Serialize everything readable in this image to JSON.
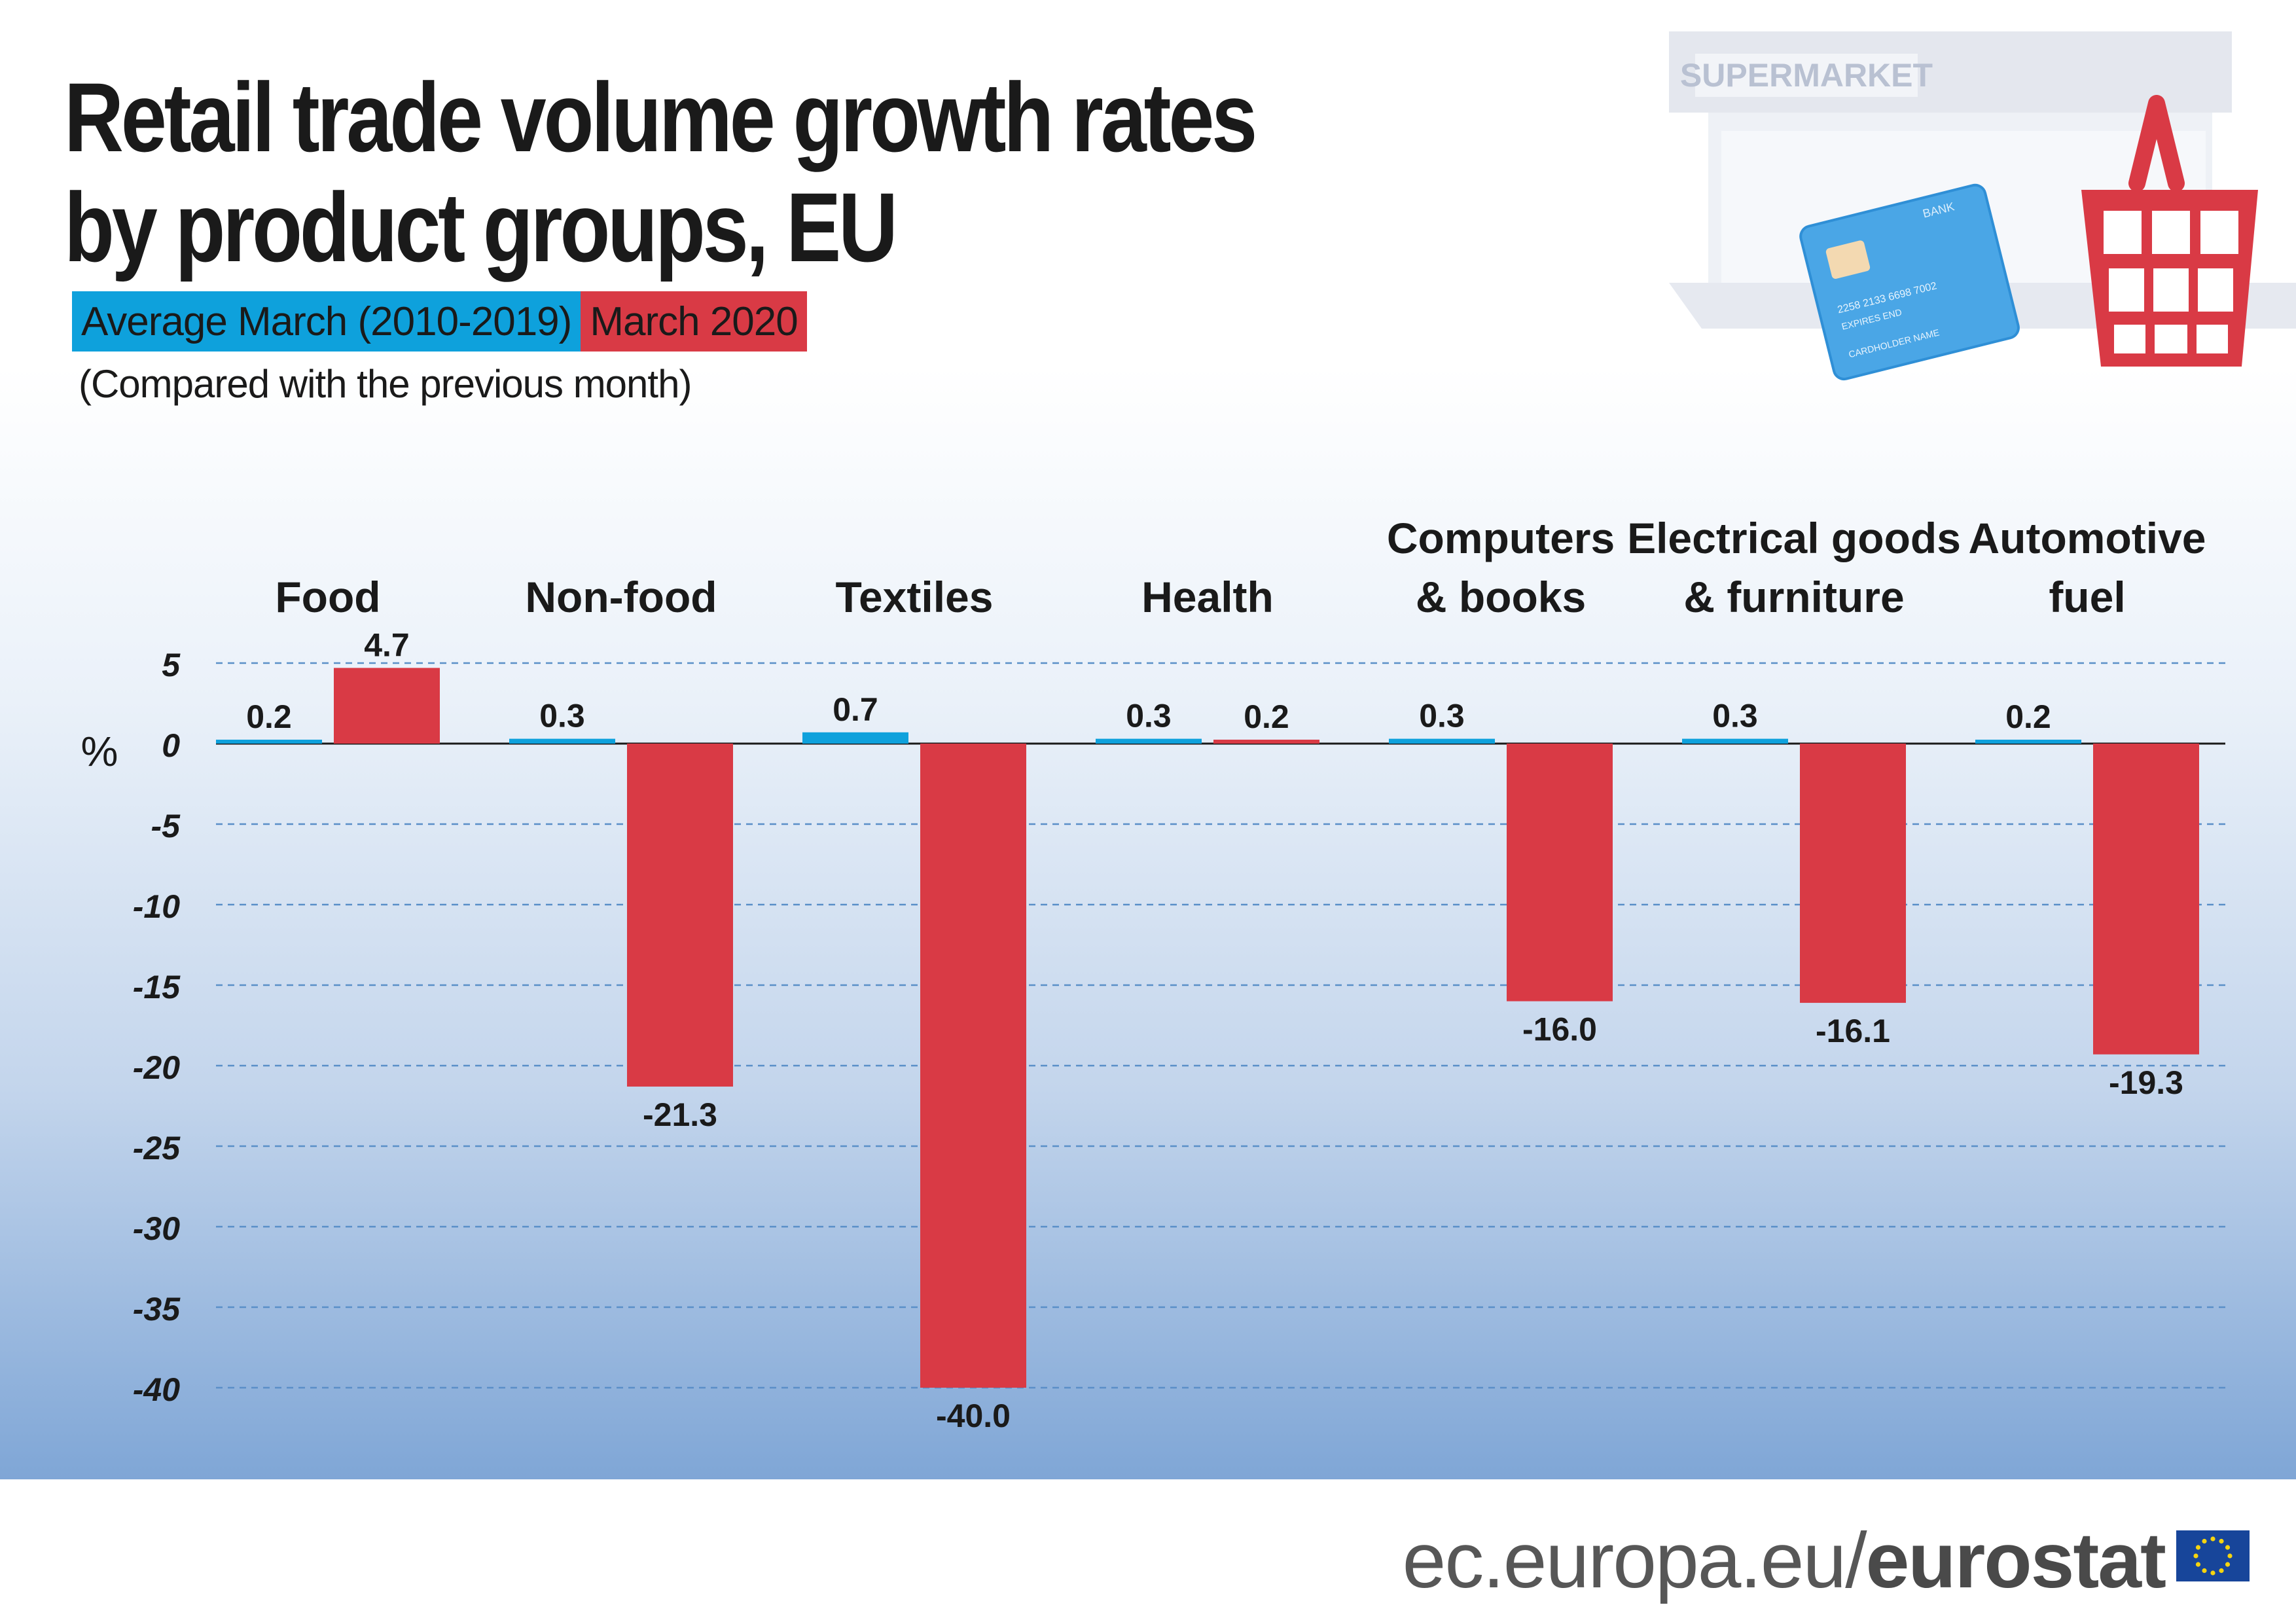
{
  "title_line1": "Retail trade volume growth rates",
  "title_line2": "by product groups, EU",
  "subtitle": "(Compared with the previous month)",
  "footer": {
    "url_prefix": "ec.europa.eu/",
    "brand": "eurostat"
  },
  "illustration": {
    "store_sign": "SUPERMARKET",
    "card_bank": "BANK",
    "card_number": "2258 2133 6698 7002",
    "card_expires": "EXPIRES END",
    "card_holder": "CARDHOLDER NAME",
    "icons": [
      "supermarket-icon",
      "credit-card-icon",
      "shopping-basket-icon",
      "eu-flag-icon"
    ]
  },
  "colors": {
    "avg": "#0ea1dc",
    "cur": "#d93a45",
    "grid": "#5a8fc8",
    "text": "#1a1a1a"
  },
  "chart_data": {
    "type": "bar",
    "ylabel": "%",
    "ylim": [
      -40,
      5
    ],
    "yticks": [
      5,
      0,
      -5,
      -10,
      -15,
      -20,
      -25,
      -30,
      -35,
      -40
    ],
    "grid": true,
    "legend_position": "top-left",
    "categories": [
      [
        "Food"
      ],
      [
        "Non-food"
      ],
      [
        "Textiles"
      ],
      [
        "Health"
      ],
      [
        "Computers",
        "& books"
      ],
      [
        "Electrical goods",
        "& furniture"
      ],
      [
        "Automotive",
        "fuel"
      ]
    ],
    "series": [
      {
        "name": "Average March (2010-2019)",
        "values": [
          0.2,
          0.3,
          0.7,
          0.3,
          0.3,
          0.3,
          0.2
        ]
      },
      {
        "name": "March 2020",
        "values": [
          4.7,
          -21.3,
          -40.0,
          0.2,
          -16.0,
          -16.1,
          -19.3
        ]
      }
    ]
  }
}
